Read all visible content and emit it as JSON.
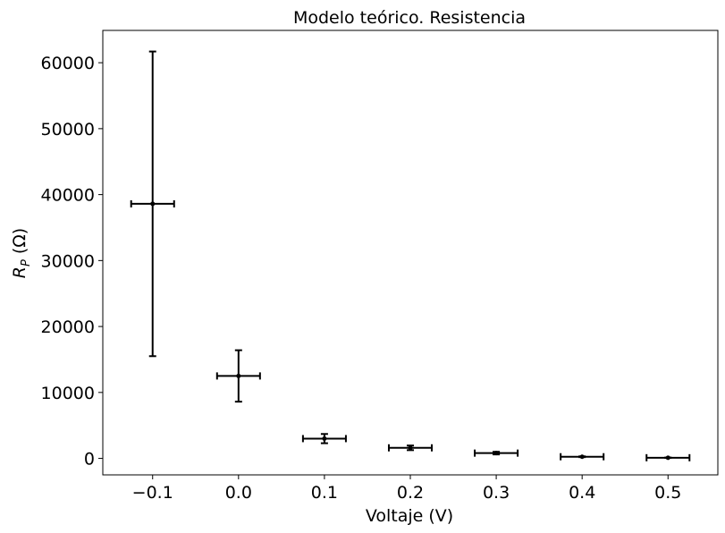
{
  "chart_data": {
    "type": "scatter",
    "title": "Modelo teórico. Resistencia",
    "xlabel": "Voltaje (V)",
    "ylabel_main": "R",
    "ylabel_sub": "P",
    "ylabel_unit": " (Ω)",
    "xlim": [
      -0.158,
      0.558
    ],
    "ylim": [
      -2500,
      64900
    ],
    "x_ticks": [
      -0.1,
      0.0,
      0.1,
      0.2,
      0.3,
      0.4,
      0.5
    ],
    "x_tick_labels": [
      "−0.1",
      "0.0",
      "0.1",
      "0.2",
      "0.3",
      "0.4",
      "0.5"
    ],
    "y_ticks": [
      0,
      10000,
      20000,
      30000,
      40000,
      50000,
      60000
    ],
    "y_tick_labels": [
      "0",
      "10000",
      "20000",
      "30000",
      "40000",
      "50000",
      "60000"
    ],
    "grid": false,
    "marker_color": "#000000",
    "points": [
      {
        "x": -0.1,
        "y": 38600,
        "xerr": 0.025,
        "yerr": 23100
      },
      {
        "x": 0.0,
        "y": 12500,
        "xerr": 0.025,
        "yerr": 3900
      },
      {
        "x": 0.1,
        "y": 3000,
        "xerr": 0.025,
        "yerr": 700
      },
      {
        "x": 0.2,
        "y": 1600,
        "xerr": 0.025,
        "yerr": 350
      },
      {
        "x": 0.3,
        "y": 800,
        "xerr": 0.025,
        "yerr": 200
      },
      {
        "x": 0.4,
        "y": 250,
        "xerr": 0.025,
        "yerr": 60
      },
      {
        "x": 0.5,
        "y": 100,
        "xerr": 0.025,
        "yerr": 30
      }
    ]
  }
}
